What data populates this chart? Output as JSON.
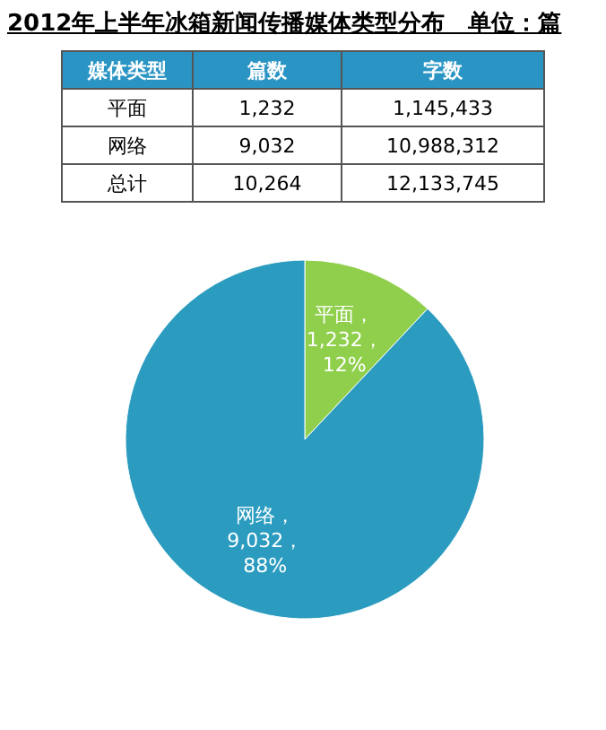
{
  "chart_data": [
    {
      "type": "other",
      "title": "2012年上半年冰箱新闻传播媒体类型分布　单位：篇",
      "annotations": [
        "媒体类型",
        "篇数",
        "字数",
        "平面",
        "1,232",
        "1,145,433",
        "网络",
        "9,032",
        "10,988,312",
        "总计",
        "10,264",
        "12,133,745"
      ]
    },
    {
      "type": "pie",
      "categories": [
        "平面",
        "网络"
      ],
      "values": [
        1232,
        9032
      ],
      "colors": [
        "#8fcf4c",
        "#2b9cc0"
      ],
      "value_labels": [
        "，\n1,232，\n12%",
        "，\n9,032，\n88%"
      ]
    }
  ]
}
